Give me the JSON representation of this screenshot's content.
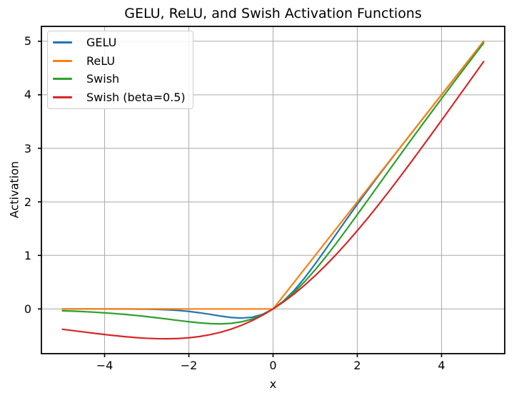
{
  "chart_data": {
    "type": "line",
    "title": "GELU, ReLU, and Swish Activation Functions",
    "xlabel": "x",
    "ylabel": "Activation",
    "xlim": [
      -5.5,
      5.5
    ],
    "ylim": [
      -0.8346,
      5.2778
    ],
    "xticks": [
      -4,
      -2,
      0,
      2,
      4
    ],
    "xtick_labels": [
      "−4",
      "−2",
      "0",
      "2",
      "4"
    ],
    "yticks": [
      0,
      1,
      2,
      3,
      4,
      5
    ],
    "ytick_labels": [
      "0",
      "1",
      "2",
      "3",
      "4",
      "5"
    ],
    "grid": true,
    "grid_color": "#b0b0b0",
    "spine_color": "#000000",
    "legend_position": "upper left",
    "x": [
      -5,
      -4.75,
      -4.5,
      -4.25,
      -4,
      -3.75,
      -3.5,
      -3.25,
      -3,
      -2.75,
      -2.5,
      -2.25,
      -2,
      -1.75,
      -1.5,
      -1.25,
      -1,
      -0.75,
      -0.5,
      -0.25,
      0,
      0.25,
      0.5,
      0.75,
      1,
      1.25,
      1.5,
      1.75,
      2,
      2.25,
      2.5,
      2.75,
      3,
      3.25,
      3.5,
      3.75,
      4,
      4.25,
      4.5,
      4.75,
      5
    ],
    "series": [
      {
        "name": "GELU",
        "color": "#1f77b4",
        "values": [
          0,
          0,
          0,
          0,
          -0.0001,
          -0.0003,
          -0.0008,
          -0.0019,
          -0.004,
          -0.0082,
          -0.0155,
          -0.0275,
          -0.0455,
          -0.0702,
          -0.1002,
          -0.132,
          -0.1587,
          -0.17,
          -0.1543,
          -0.1003,
          0,
          0.1497,
          0.3457,
          0.58,
          0.8413,
          1.118,
          1.3998,
          1.6799,
          1.9545,
          2.2226,
          2.4845,
          2.7417,
          2.996,
          3.2481,
          3.4992,
          3.7497,
          3.9999,
          4.25,
          4.5,
          4.75,
          5.0
        ]
      },
      {
        "name": "ReLU",
        "color": "#ff7f0e",
        "values": [
          0,
          0,
          0,
          0,
          0,
          0,
          0,
          0,
          0,
          0,
          0,
          0,
          0,
          0,
          0,
          0,
          0,
          0,
          0,
          0,
          0,
          0.25,
          0.5,
          0.75,
          1,
          1.25,
          1.5,
          1.75,
          2,
          2.25,
          2.5,
          2.75,
          3,
          3.25,
          3.5,
          3.75,
          4,
          4.25,
          4.5,
          4.75,
          5
        ]
      },
      {
        "name": "Swish",
        "color": "#2ca02c",
        "values": [
          -0.0335,
          -0.0409,
          -0.0495,
          -0.0599,
          -0.0719,
          -0.0862,
          -0.1026,
          -0.1212,
          -0.1423,
          -0.1652,
          -0.1898,
          -0.2145,
          -0.2384,
          -0.259,
          -0.2736,
          -0.2784,
          -0.2689,
          -0.2406,
          -0.1888,
          -0.1095,
          0,
          0.1406,
          0.3112,
          0.5094,
          0.7311,
          0.9716,
          1.2263,
          1.491,
          1.7616,
          2.0356,
          2.3103,
          2.5847,
          2.8577,
          3.1288,
          3.3974,
          3.6638,
          3.9281,
          4.1901,
          4.4505,
          4.7092,
          4.9665
        ]
      },
      {
        "name": "Swish (beta=0.5)",
        "color": "#d62728",
        "values": [
          -0.3795,
          -0.4042,
          -0.4289,
          -0.4535,
          -0.4768,
          -0.4988,
          -0.518,
          -0.5346,
          -0.5472,
          -0.555,
          -0.5568,
          -0.5515,
          -0.5379,
          -0.5149,
          -0.4812,
          -0.4359,
          -0.3775,
          -0.3055,
          -0.2189,
          -0.1172,
          0,
          0.1328,
          0.2811,
          0.4445,
          0.6225,
          0.8141,
          1.0188,
          1.2352,
          1.4622,
          1.6985,
          1.9433,
          2.1951,
          2.4528,
          2.7154,
          2.982,
          3.2513,
          3.5232,
          3.7965,
          4.0712,
          4.3458,
          4.6205
        ]
      }
    ]
  }
}
